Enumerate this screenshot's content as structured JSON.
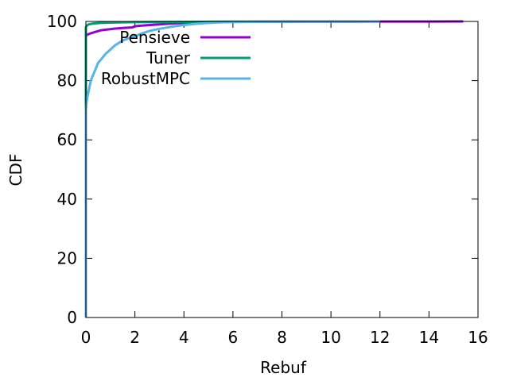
{
  "chart_data": {
    "type": "line",
    "title": "",
    "xlabel": "Rebuf",
    "ylabel": "CDF",
    "xlim": [
      0,
      16
    ],
    "ylim": [
      0,
      100
    ],
    "xticks": [
      0,
      2,
      4,
      6,
      8,
      10,
      12,
      14,
      16
    ],
    "yticks": [
      0,
      20,
      40,
      60,
      80,
      100
    ],
    "grid": false,
    "legend_position": "top-left",
    "series": [
      {
        "name": "Pensieve",
        "color": "#9400d3",
        "x": [
          0,
          0,
          0.05,
          0.2,
          0.4,
          0.6,
          0.8,
          1.0,
          1.2,
          1.5,
          1.9,
          2.0,
          2.5,
          3.0,
          3.5,
          4.0,
          4.5,
          5.0,
          5.5,
          6.0,
          7.0,
          8.0,
          9.0,
          10.0,
          11.0,
          12.0,
          13.0,
          14.0,
          15.0,
          15.4
        ],
        "y": [
          0,
          95.0,
          95.5,
          96.0,
          96.5,
          97.0,
          97.2,
          97.4,
          97.6,
          97.8,
          98.0,
          98.4,
          98.7,
          99.0,
          99.3,
          99.5,
          99.6,
          99.7,
          99.8,
          99.85,
          99.88,
          99.9,
          99.92,
          99.94,
          99.95,
          99.96,
          99.97,
          99.98,
          99.99,
          100
        ]
      },
      {
        "name": "Tuner",
        "color": "#009e73",
        "x": [
          0,
          0,
          0.03,
          0.1,
          0.3,
          0.6,
          1.0,
          1.5,
          2.0,
          3.0,
          4.0,
          5.0,
          6.0,
          8.0,
          10.0,
          12.0
        ],
        "y": [
          0,
          98.0,
          98.5,
          99.0,
          99.3,
          99.5,
          99.6,
          99.7,
          99.75,
          99.8,
          99.85,
          99.9,
          99.95,
          99.97,
          99.99,
          100
        ]
      },
      {
        "name": "RobustMPC",
        "color": "#56b4e9",
        "x": [
          0,
          0,
          0.02,
          0.05,
          0.1,
          0.15,
          0.2,
          0.3,
          0.4,
          0.5,
          0.6,
          0.8,
          1.0,
          1.2,
          1.5,
          1.8,
          2.0,
          2.3,
          2.6,
          3.0,
          3.5,
          4.0,
          4.5,
          5.0,
          5.5,
          6.0,
          7.0,
          8.0,
          10.0,
          12.0
        ],
        "y": [
          0,
          70,
          72,
          74,
          76,
          78,
          80,
          82,
          84,
          86,
          87,
          89,
          90.5,
          92,
          93.5,
          94.5,
          95,
          96,
          96.8,
          97.5,
          98.2,
          98.8,
          99.2,
          99.5,
          99.7,
          99.8,
          99.9,
          99.95,
          99.98,
          100
        ]
      }
    ]
  }
}
